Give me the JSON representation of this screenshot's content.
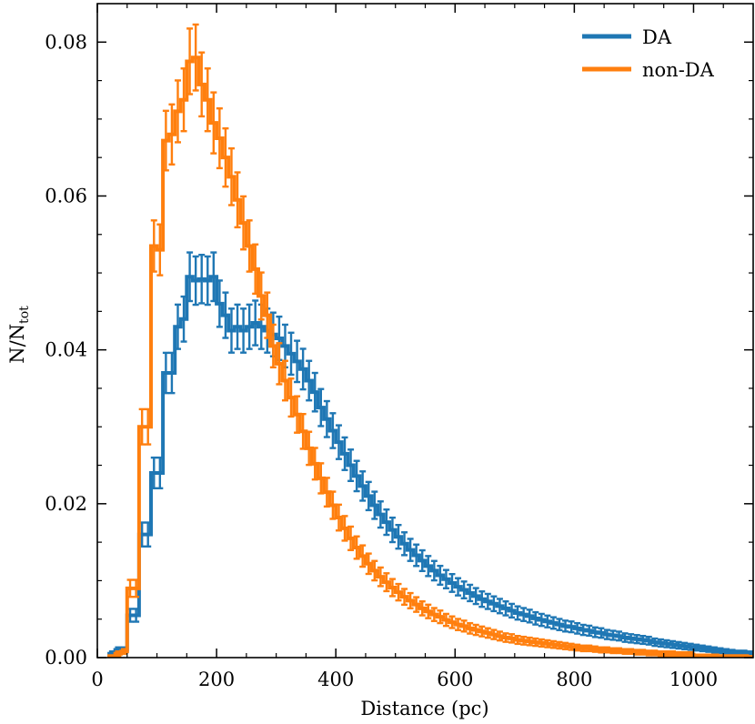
{
  "chart_data": {
    "type": "line",
    "style": "step-histogram-with-errorbars",
    "xlabel": "Distance (pc)",
    "ylabel_main": "N/N",
    "ylabel_sub": "tot",
    "xlim": [
      0,
      1100
    ],
    "ylim": [
      0,
      0.085
    ],
    "xticks": [
      0,
      200,
      400,
      600,
      800,
      1000
    ],
    "xtick_labels": [
      "0",
      "200",
      "400",
      "600",
      "800",
      "1000"
    ],
    "yticks": [
      0,
      0.02,
      0.04,
      0.06,
      0.08
    ],
    "ytick_labels": [
      "0.00",
      "0.02",
      "0.04",
      "0.06",
      "0.08"
    ],
    "bin_edges_start": 20,
    "bin_width": 10,
    "legend_position": "top-right",
    "series": [
      {
        "name": "DA",
        "color": "#1f77b4",
        "values": [
          0.0005,
          0.001,
          0.001,
          0.0055,
          0.0055,
          0.016,
          0.016,
          0.024,
          0.024,
          0.037,
          0.037,
          0.043,
          0.044,
          0.0495,
          0.049,
          0.0492,
          0.049,
          0.0495,
          0.046,
          0.0445,
          0.0425,
          0.043,
          0.0425,
          0.043,
          0.0435,
          0.043,
          0.0425,
          0.042,
          0.0415,
          0.0405,
          0.0395,
          0.0385,
          0.0375,
          0.036,
          0.0345,
          0.0325,
          0.031,
          0.0295,
          0.028,
          0.0265,
          0.025,
          0.0236,
          0.0223,
          0.021,
          0.0198,
          0.0186,
          0.0176,
          0.0166,
          0.0157,
          0.0148,
          0.014,
          0.0133,
          0.0126,
          0.0119,
          0.0113,
          0.0107,
          0.0102,
          0.0097,
          0.0092,
          0.0088,
          0.0084,
          0.008,
          0.0076,
          0.0073,
          0.007,
          0.0067,
          0.0064,
          0.0061,
          0.0058,
          0.0056,
          0.0054,
          0.0051,
          0.0049,
          0.0047,
          0.0045,
          0.0043,
          0.0041,
          0.004,
          0.0038,
          0.0036,
          0.0035,
          0.0033,
          0.0032,
          0.003,
          0.0029,
          0.0028,
          0.0026,
          0.0025,
          0.0024,
          0.0023,
          0.0022,
          0.002,
          0.0019,
          0.0018,
          0.0017,
          0.0016,
          0.0015,
          0.0014,
          0.0013,
          0.0012,
          0.0011,
          0.001,
          0.0009,
          0.0008,
          0.0007,
          0.0006,
          0.0006,
          0.0005
        ]
      },
      {
        "name": "non-DA",
        "color": "#ff7f0e",
        "values": [
          0.0002,
          0.0005,
          0.0008,
          0.009,
          0.009,
          0.03,
          0.03,
          0.0535,
          0.053,
          0.0672,
          0.068,
          0.071,
          0.0725,
          0.0775,
          0.078,
          0.0745,
          0.0725,
          0.0695,
          0.0675,
          0.065,
          0.0625,
          0.0595,
          0.0565,
          0.0535,
          0.0505,
          0.047,
          0.0445,
          0.0405,
          0.0382,
          0.036,
          0.0338,
          0.0316,
          0.0294,
          0.0272,
          0.0252,
          0.0233,
          0.0215,
          0.0198,
          0.0182,
          0.0168,
          0.0155,
          0.0143,
          0.0132,
          0.0122,
          0.0113,
          0.0105,
          0.0098,
          0.0091,
          0.0085,
          0.0079,
          0.0074,
          0.0069,
          0.0064,
          0.006,
          0.0056,
          0.0053,
          0.0049,
          0.0046,
          0.0043,
          0.0041,
          0.0038,
          0.0036,
          0.0034,
          0.0032,
          0.003,
          0.0028,
          0.0026,
          0.0025,
          0.0023,
          0.0022,
          0.0021,
          0.002,
          0.0019,
          0.0018,
          0.0017,
          0.0016,
          0.0015,
          0.0014,
          0.0013,
          0.0012,
          0.0012,
          0.0011,
          0.001,
          0.001,
          0.0009,
          0.0009,
          0.0008,
          0.0008,
          0.0007,
          0.0007,
          0.0006,
          0.0006,
          0.0005,
          0.0005,
          0.0005,
          0.0004,
          0.0004,
          0.0004,
          0.0003,
          0.0003,
          0.0003,
          0.0003,
          0.0002,
          0.0002,
          0.0002,
          0.0002,
          0.0002,
          0.0001
        ]
      }
    ]
  }
}
